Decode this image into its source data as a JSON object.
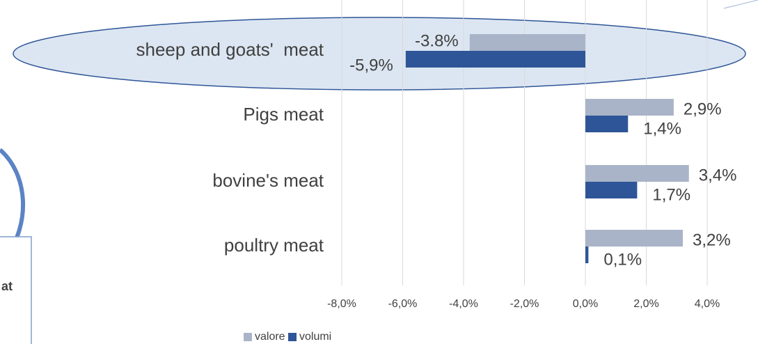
{
  "chart_data": {
    "type": "hbar",
    "categories": [
      "sheep and goats'  meat",
      "Pigs meat",
      "bovine's meat",
      "poultry meat"
    ],
    "series": [
      {
        "name": "valore",
        "color": "#a9b4c8",
        "values": [
          -3.8,
          2.9,
          3.4,
          3.2
        ],
        "value_labels": [
          "-3.8%",
          "2,9%",
          "3,4%",
          "3,2%"
        ]
      },
      {
        "name": "volumi",
        "color": "#2e5597",
        "values": [
          -5.9,
          1.4,
          1.7,
          0.1
        ],
        "value_labels": [
          "-5,9%",
          "1,4%",
          "1,7%",
          "0,1%"
        ]
      }
    ],
    "xlim": [
      -8,
      4
    ],
    "xticks": [
      {
        "value": -8,
        "label": "-8,0%"
      },
      {
        "value": -6,
        "label": "-6,0%"
      },
      {
        "value": -4,
        "label": "-4,0%"
      },
      {
        "value": -2,
        "label": "-2,0%"
      },
      {
        "value": 0,
        "label": "0,0%"
      },
      {
        "value": 2,
        "label": "2,0%"
      },
      {
        "value": 4,
        "label": "4,0%"
      }
    ],
    "grid": true,
    "legend": "bottom",
    "annotations": [
      "at"
    ]
  }
}
